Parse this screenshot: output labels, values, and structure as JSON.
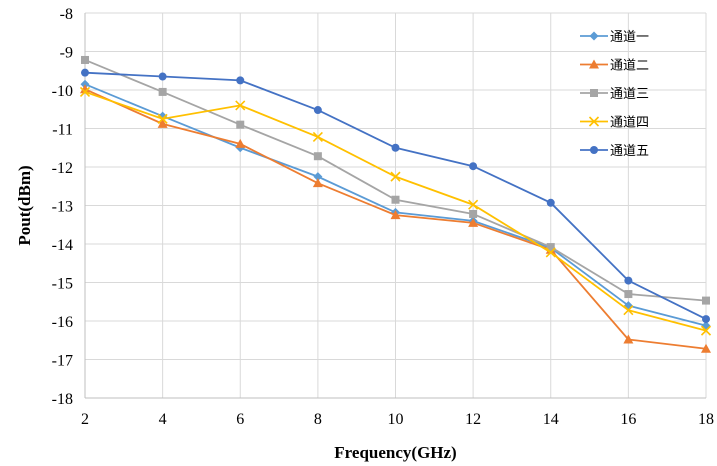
{
  "chart_data": {
    "type": "line",
    "title": "",
    "xlabel": "Frequency(GHz)",
    "ylabel": "Pout(dBm)",
    "x": [
      2,
      4,
      6,
      8,
      10,
      12,
      14,
      16,
      18
    ],
    "xlim": [
      2,
      18
    ],
    "ylim": [
      -18,
      -8
    ],
    "xticks": [
      "2",
      "4",
      "6",
      "8",
      "10",
      "12",
      "14",
      "16",
      "18"
    ],
    "yticks": [
      "-8",
      "-9",
      "-10",
      "-11",
      "-12",
      "-13",
      "-14",
      "-15",
      "-16",
      "-17",
      "-18"
    ],
    "grid": "horizontal",
    "legend_position": "top-right",
    "series": [
      {
        "name": "通道一",
        "color": "#5b9bd5",
        "marker": "diamond",
        "values": [
          -9.85,
          -10.68,
          -11.5,
          -12.25,
          -13.18,
          -13.4,
          -14.1,
          -15.6,
          -16.12
        ]
      },
      {
        "name": "通道二",
        "color": "#ed7d31",
        "marker": "triangle",
        "values": [
          -9.98,
          -10.88,
          -11.4,
          -12.42,
          -13.25,
          -13.45,
          -14.15,
          -16.48,
          -16.72
        ]
      },
      {
        "name": "通道三",
        "color": "#a5a5a5",
        "marker": "square",
        "values": [
          -9.22,
          -10.05,
          -10.9,
          -11.72,
          -12.85,
          -13.22,
          -14.08,
          -15.3,
          -15.47
        ]
      },
      {
        "name": "通道四",
        "color": "#ffc000",
        "marker": "x",
        "values": [
          -10.05,
          -10.75,
          -10.4,
          -11.22,
          -12.25,
          -12.98,
          -14.22,
          -15.72,
          -16.25
        ]
      },
      {
        "name": "通道五",
        "color": "#4472c4",
        "marker": "circle",
        "values": [
          -9.55,
          -9.65,
          -9.75,
          -10.52,
          -11.5,
          -11.98,
          -12.93,
          -14.95,
          -15.95
        ]
      }
    ]
  }
}
